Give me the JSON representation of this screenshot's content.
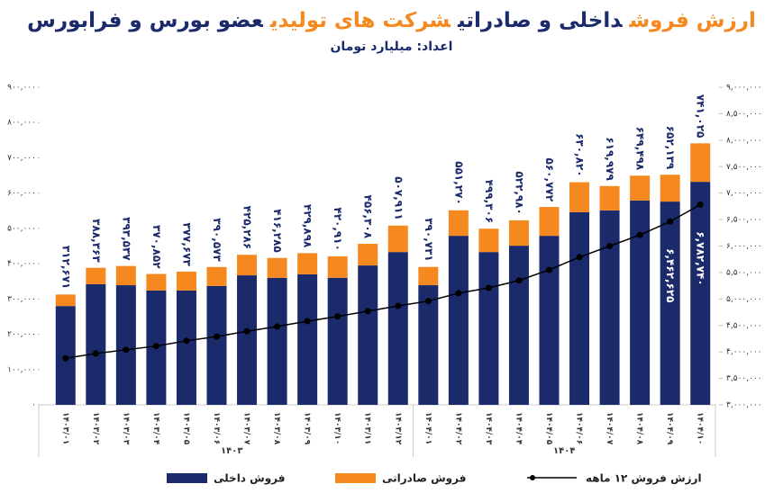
{
  "chart_data": {
    "type": "bar",
    "stacked": true,
    "title_parts": [
      {
        "text": "ارزش فروش",
        "color": "#f5891f"
      },
      {
        "text": "داخلی و صادراتی",
        "color": "#1b2a6b"
      },
      {
        "text": "شرکت های تولیدی",
        "color": "#f5891f"
      },
      {
        "text": "عضو بورس و فرابورس",
        "color": "#1b2a6b"
      }
    ],
    "subtitle": "اعداد: میلیارد تومان",
    "categories": [
      "۱۴۰۳/۰۱",
      "۱۴۰۳/۰۲",
      "۱۴۰۳/۰۳",
      "۱۴۰۳/۰۴",
      "۱۴۰۳/۰۵",
      "۱۴۰۳/۰۶",
      "۱۴۰۳/۰۷",
      "۱۴۰۳/۰۸",
      "۱۴۰۳/۰۹",
      "۱۴۰۳/۱۰",
      "۱۴۰۳/۱۱",
      "۱۴۰۳/۱۲",
      "۱۴۰۴/۰۱",
      "۱۴۰۴/۰۲",
      "۱۴۰۴/۰۳",
      "۱۴۰۴/۰۴",
      "۱۴۰۴/۰۵",
      "۱۴۰۴/۰۶",
      "۱۴۰۴/۰۷",
      "۱۴۰۴/۰۸",
      "۱۴۰۴/۰۹",
      "۱۴۰۴/۱۰"
    ],
    "groups": [
      "۱۴۰۳",
      "۱۴۰۴"
    ],
    "series": [
      {
        "name": "فروش داخلی",
        "color": "#1b2a6b",
        "values": [
          280000,
          342000,
          339000,
          324000,
          324000,
          337000,
          367000,
          360000,
          370000,
          360000,
          395000,
          433000,
          339000,
          479000,
          433000,
          451000,
          479000,
          546000,
          551000,
          579000,
          576000,
          632000
        ]
      },
      {
        "name": "فروش صادراتی",
        "color": "#f5891f",
        "values": [
          32671,
          46363,
          54537,
          46852,
          53673,
          53573,
          58286,
          56285,
          59898,
          60910,
          61308,
          74911,
          51731,
          72270,
          66306,
          71980,
          81772,
          84820,
          68979,
          70498,
          76139,
          109025
        ]
      },
      {
        "name": "ارزش فروش ۱۲ ماهه",
        "type": "line",
        "axis": "y2",
        "color": "#000000",
        "values": [
          3880000,
          3970000,
          4040000,
          4110000,
          4210000,
          4290000,
          4390000,
          4480000,
          4580000,
          4670000,
          4770000,
          4870000,
          4960000,
          5110000,
          5210000,
          5350000,
          5550000,
          5790000,
          6000000,
          6210000,
          6462625,
          6782740
        ],
        "value_labels": [
          null,
          null,
          null,
          null,
          null,
          null,
          null,
          null,
          null,
          null,
          null,
          null,
          null,
          null,
          null,
          null,
          null,
          null,
          null,
          null,
          "۶,۴۶۲,۶۲۵",
          "۶,۷۸۲,۷۴۰"
        ]
      }
    ],
    "totals": {
      "values": [
        312671,
        388363,
        393537,
        370852,
        377673,
        390573,
        425286,
        416285,
        429898,
        420910,
        456308,
        507911,
        390731,
        551270,
        499306,
        522980,
        560772,
        630820,
        619979,
        649498,
        652139,
        741025
      ],
      "value_labels": [
        "۳۱۲,۶۷۱",
        "۳۸۸,۳۶۳",
        "۳۹۳,۵۳۷",
        "۳۷۰,۸۵۲",
        "۳۷۷,۶۷۳",
        "۳۹۰,۵۷۳",
        "۴۲۵,۲۸۶",
        "۴۱۶,۲۸۵",
        "۴۲۹,۸۹۸",
        "۴۲۰,۹۱۰",
        "۴۵۶,۳۰۸",
        "۵۰۷,۹۱۱",
        "۳۹۰,۷۳۱",
        "۵۵۱,۲۷۰",
        "۴۹۹,۳۰۶",
        "۵۲۲,۹۸۰",
        "۵۶۰,۷۷۲",
        "۶۳۰,۸۲۰",
        "۶۱۹,۹۷۹",
        "۶۴۹,۴۹۸",
        "۶۵۲,۱۳۹",
        "۷۴۱,۰۲۵"
      ]
    },
    "ylim": [
      0,
      900000
    ],
    "yticks": [
      {
        "value": 0,
        "label": "۰"
      },
      {
        "value": 100000,
        "label": "۱۰۰,۰۰۰"
      },
      {
        "value": 200000,
        "label": "۲۰۰,۰۰۰"
      },
      {
        "value": 300000,
        "label": "۳۰۰,۰۰۰"
      },
      {
        "value": 400000,
        "label": "۴۰۰,۰۰۰"
      },
      {
        "value": 500000,
        "label": "۵۰۰,۰۰۰"
      },
      {
        "value": 600000,
        "label": "۶۰۰,۰۰۰"
      },
      {
        "value": 700000,
        "label": "۷۰۰,۰۰۰"
      },
      {
        "value": 800000,
        "label": "۸۰۰,۰۰۰"
      },
      {
        "value": 900000,
        "label": "۹۰۰,۰۰۰"
      }
    ],
    "y2lim": [
      3000000,
      9000000
    ],
    "y2ticks": [
      {
        "value": 3000000,
        "label": "۳,۰۰۰,۰۰۰"
      },
      {
        "value": 3500000,
        "label": "۳,۵۰۰,۰۰۰"
      },
      {
        "value": 4000000,
        "label": "۴,۰۰۰,۰۰۰"
      },
      {
        "value": 4500000,
        "label": "۴,۵۰۰,۰۰۰"
      },
      {
        "value": 5000000,
        "label": "۵,۰۰۰,۰۰۰"
      },
      {
        "value": 5500000,
        "label": "۵,۵۰۰,۰۰۰"
      },
      {
        "value": 6000000,
        "label": "۶,۰۰۰,۰۰۰"
      },
      {
        "value": 6500000,
        "label": "۶,۵۰۰,۰۰۰"
      },
      {
        "value": 7000000,
        "label": "۷,۰۰۰,۰۰۰"
      },
      {
        "value": 7500000,
        "label": "۷,۵۰۰,۰۰۰"
      },
      {
        "value": 8000000,
        "label": "۸,۰۰۰,۰۰۰"
      },
      {
        "value": 8500000,
        "label": "۸,۵۰۰,۰۰۰"
      },
      {
        "value": 9000000,
        "label": "۹,۰۰۰,۰۰۰"
      }
    ],
    "grid": false
  }
}
